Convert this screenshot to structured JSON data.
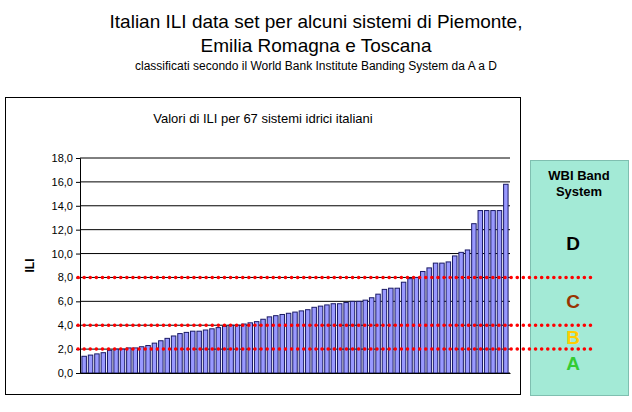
{
  "chart_data": {
    "type": "bar",
    "title": [
      "Italian ILI data set per alcuni sistemi di Piemonte,",
      "Emilia Romagna e Toscana"
    ],
    "subtitle": "classificati secondo il World Bank Institute Banding System da A a D",
    "plot_title": "Valori di ILI per 67 sistemi idrici italiani",
    "y_label": "ILI",
    "categories": [
      null,
      null,
      null,
      null,
      null,
      null,
      null,
      null,
      null,
      null,
      null,
      null,
      null,
      null,
      null,
      null,
      null,
      null,
      null,
      null,
      null,
      null,
      null,
      null,
      null,
      null,
      null,
      null,
      null,
      null,
      null,
      null,
      null,
      null,
      null,
      null,
      null,
      null,
      null,
      null,
      null,
      null,
      null,
      null,
      null,
      null,
      null,
      null,
      null,
      null,
      null,
      null,
      null,
      null,
      null,
      null,
      null,
      null,
      null,
      null,
      null,
      null,
      null,
      null,
      null,
      null,
      null
    ],
    "values": [
      1.4,
      1.5,
      1.6,
      1.7,
      1.9,
      2.0,
      2.0,
      2.1,
      2.1,
      2.2,
      2.3,
      2.5,
      2.7,
      2.9,
      3.1,
      3.3,
      3.4,
      3.5,
      3.5,
      3.6,
      3.7,
      3.8,
      3.9,
      4.0,
      4.0,
      4.1,
      4.2,
      4.3,
      4.5,
      4.7,
      4.8,
      4.9,
      5.0,
      5.1,
      5.2,
      5.3,
      5.5,
      5.6,
      5.7,
      5.8,
      5.8,
      5.9,
      6.0,
      6.0,
      6.1,
      6.3,
      6.6,
      7.0,
      7.1,
      7.1,
      7.6,
      7.9,
      8.0,
      8.5,
      8.8,
      9.2,
      9.2,
      9.3,
      9.8,
      10.1,
      10.3,
      12.5,
      13.6,
      13.6,
      13.6,
      13.6,
      15.8
    ],
    "color": "#9999ff",
    "ylim": [
      0,
      18
    ],
    "yticks": [
      {
        "value": 0,
        "label": "0,0"
      },
      {
        "value": 2,
        "label": "2,0"
      },
      {
        "value": 4,
        "label": "4,0"
      },
      {
        "value": 6,
        "label": "6,0"
      },
      {
        "value": 8,
        "label": "8,0"
      },
      {
        "value": 10,
        "label": "10,0"
      },
      {
        "value": 12,
        "label": "12,0"
      },
      {
        "value": 14,
        "label": "14,0"
      },
      {
        "value": 16,
        "label": "16,0"
      },
      {
        "value": 18,
        "label": "18,0"
      }
    ],
    "grid": true,
    "tick_labels": "y",
    "band_lines": [
      2,
      4,
      8
    ],
    "band_legend": {
      "title": [
        "WBI Band",
        "System"
      ],
      "labels": [
        "D",
        "C",
        "B",
        "A"
      ],
      "colors": [
        "#000000",
        "#993300",
        "#ffcc00",
        "#33cc33"
      ]
    }
  }
}
